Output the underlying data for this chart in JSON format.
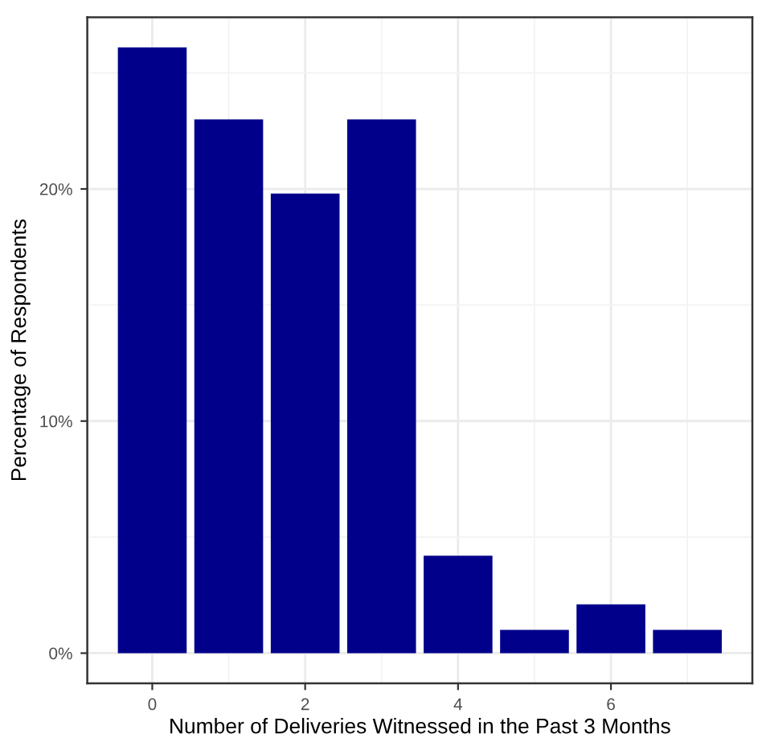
{
  "chart_data": {
    "type": "bar",
    "xlabel": "Number of Deliveries Witnessed in the Past 3 Months",
    "ylabel": "Percentage of Respondents",
    "x": [
      0,
      1,
      2,
      3,
      4,
      5,
      6,
      7
    ],
    "values": [
      26.1,
      23.0,
      19.8,
      23.0,
      4.2,
      1.0,
      2.1,
      1.0
    ],
    "color": "#00008b",
    "xlim": [
      -0.85,
      7.85
    ],
    "xticks": [
      0,
      2,
      4,
      6
    ],
    "ylim": [
      -1.3,
      27.4
    ],
    "yticks": [
      {
        "value": 0,
        "label": "0%"
      },
      {
        "value": 10,
        "label": "10%"
      },
      {
        "value": 20,
        "label": "20%"
      }
    ],
    "grid": true
  }
}
